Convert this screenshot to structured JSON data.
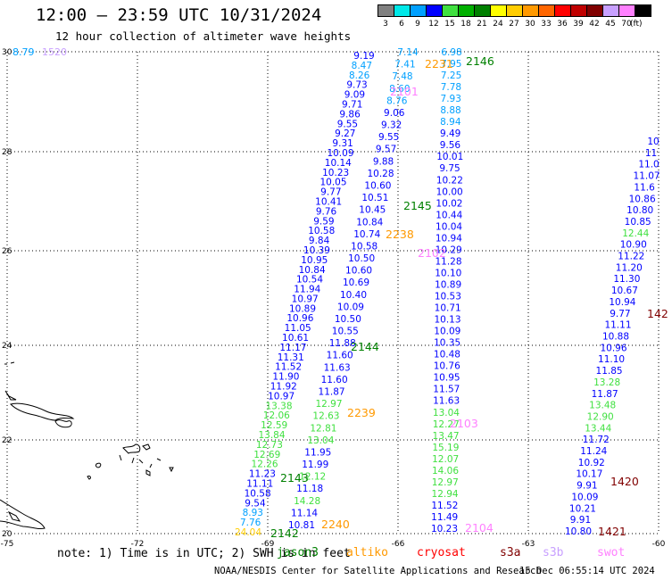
{
  "header": {
    "title": "12:00 – 23:59 UTC 10/31/2024",
    "subtitle": "12 hour collection of altimeter wave heights"
  },
  "color_scale": {
    "unit": "(ft)",
    "bins": [
      {
        "label": "3",
        "color": "#808080"
      },
      {
        "label": "6",
        "color": "#00e8e8"
      },
      {
        "label": "9",
        "color": "#00a0ff"
      },
      {
        "label": "12",
        "color": "#0000ff"
      },
      {
        "label": "15",
        "color": "#40e040"
      },
      {
        "label": "18",
        "color": "#00b000"
      },
      {
        "label": "21",
        "color": "#008000"
      },
      {
        "label": "24",
        "color": "#ffff00"
      },
      {
        "label": "27",
        "color": "#ffcc00"
      },
      {
        "label": "30",
        "color": "#ff9900"
      },
      {
        "label": "33",
        "color": "#ff6600"
      },
      {
        "label": "36",
        "color": "#ff0000"
      },
      {
        "label": "39",
        "color": "#c00000"
      },
      {
        "label": "42",
        "color": "#800000"
      },
      {
        "label": "45",
        "color": "#c8a0ff"
      },
      {
        "label": "70",
        "color": "#ff80ff"
      },
      {
        "label": "",
        "color": "#000000"
      }
    ]
  },
  "axes": {
    "lon_labels": [
      "-75",
      "-72",
      "-69",
      "-66",
      "-63",
      "-60"
    ],
    "lat_labels": [
      "20",
      "22",
      "24",
      "26",
      "28",
      "30"
    ]
  },
  "tracks": {
    "top_left_values": [
      "8.79",
      "1520"
    ],
    "pass_labels": [
      {
        "text": "2146",
        "color": "#008000"
      },
      {
        "text": "2231",
        "color": "#ff9900"
      },
      {
        "text": "2101",
        "color": "#ff80ff"
      },
      {
        "text": "2145",
        "color": "#008000"
      },
      {
        "text": "2238",
        "color": "#ff9900"
      },
      {
        "text": "2102",
        "color": "#ff80ff"
      },
      {
        "text": "2144",
        "color": "#008000"
      },
      {
        "text": "2239",
        "color": "#ff9900"
      },
      {
        "text": "2103",
        "color": "#ff80ff"
      },
      {
        "text": "2143",
        "color": "#008000"
      },
      {
        "text": "2240",
        "color": "#ff9900"
      },
      {
        "text": "2142",
        "color": "#008000"
      },
      {
        "text": "2104",
        "color": "#ff80ff"
      },
      {
        "text": "1420",
        "color": "#800000"
      },
      {
        "text": "1421",
        "color": "#800000"
      },
      {
        "text": "142",
        "color": "#800000"
      }
    ],
    "track_a": [
      "9.19",
      "8.47",
      "8.26",
      "9.73",
      "9.09",
      "9.71",
      "9.86",
      "9.55",
      "9.27",
      "9.31",
      "10.09",
      "10.14",
      "10.23",
      "10.05",
      "9.77",
      "10.41",
      "9.76",
      "9.59",
      "10.58",
      "9.84",
      "10.39",
      "10.95",
      "10.84",
      "10.54",
      "11.94",
      "10.97",
      "10.89",
      "10.96",
      "11.05",
      "10.61",
      "11.17",
      "11.31",
      "11.52",
      "11.90",
      "11.92",
      "10.97",
      "13.38",
      "12.06",
      "12.59",
      "13.84",
      "12.73",
      "12.69",
      "12.26",
      "11.23",
      "11.11",
      "10.58",
      "9.54",
      "8.93",
      "7.76",
      "24.04"
    ],
    "track_a2": [
      "7.14",
      "7.41",
      "7.48",
      "8.60",
      "8.76",
      "9.06",
      "9.32",
      "9.55",
      "9.57",
      "9.88",
      "10.28",
      "10.60",
      "10.51",
      "10.45",
      "10.84",
      "10.74",
      "10.58",
      "10.50",
      "10.60",
      "10.69",
      "10.40",
      "10.09",
      "10.50",
      "10.55",
      "11.88",
      "11.60",
      "11.63",
      "11.60",
      "11.87",
      "12.97",
      "12.63",
      "12.81",
      "13.04",
      "11.95",
      "11.99",
      "12.12",
      "11.18",
      "14.28",
      "11.14",
      "10.81"
    ],
    "track_b": [
      "6.98",
      "7.95",
      "7.25",
      "7.78",
      "7.93",
      "8.88",
      "8.94",
      "9.49",
      "9.56",
      "10.01",
      "9.75",
      "10.22",
      "10.00",
      "10.02",
      "10.44",
      "10.04",
      "10.94",
      "10.29",
      "11.28",
      "10.10",
      "10.89",
      "10.53",
      "10.71",
      "10.13",
      "10.09",
      "10.35",
      "10.48",
      "10.76",
      "10.95",
      "11.57",
      "11.63",
      "13.04",
      "12.27",
      "13.47",
      "15.19",
      "12.07",
      "14.06",
      "12.97",
      "12.94",
      "11.52",
      "11.49",
      "10.23"
    ],
    "track_c": [
      "10",
      "11",
      "11.0",
      "11.07",
      "11.6",
      "10.86",
      "10.80",
      "10.85",
      "12.44",
      "10.90",
      "11.22",
      "11.20",
      "11.30",
      "10.67",
      "10.94",
      "9.77",
      "11.11",
      "10.88",
      "10.96",
      "11.10",
      "11.85",
      "13.28",
      "11.87",
      "13.48",
      "12.90",
      "13.44",
      "11.72",
      "11.24",
      "10.92",
      "10.17",
      "9.91",
      "10.09",
      "10.21",
      "9.91",
      "10.80"
    ]
  },
  "footer": {
    "note": "note: 1) Time is in UTC; 2) SWH is in feet",
    "legend": [
      {
        "label": "jason3",
        "color": "#008000"
      },
      {
        "label": "altiko",
        "color": "#ff9900"
      },
      {
        "label": "cryosat",
        "color": "#ff0000"
      },
      {
        "label": "s3a",
        "color": "#800000"
      },
      {
        "label": "s3b",
        "color": "#c8a0ff"
      },
      {
        "label": "swot",
        "color": "#ff80ff"
      }
    ],
    "credit": "NOAA/NESDIS Center for Satellite Applications and Research",
    "timestamp": "15 Dec 06:55:14 UTC 2024"
  }
}
